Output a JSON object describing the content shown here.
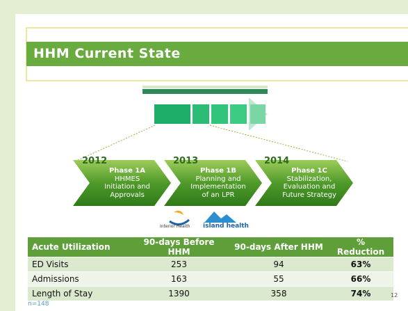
{
  "header": {
    "title": "HHM Current State"
  },
  "phases": [
    {
      "year": "2012",
      "name": "Phase 1A",
      "lines": [
        "HHMES",
        "Initiation and",
        "Approvals"
      ]
    },
    {
      "year": "2013",
      "name": "Phase 1B",
      "lines": [
        "Planning and",
        "Implementation",
        "of an LPR"
      ]
    },
    {
      "year": "2014",
      "name": "Phase 1C",
      "lines": [
        "Stabilization,",
        "Evaluation and",
        "Future Strategy"
      ]
    }
  ],
  "logos": [
    "Interior Health",
    "island health"
  ],
  "table": {
    "header": [
      "Acute Utilization",
      "90-days Before HHM",
      "90-days After HHM",
      "% Reduction"
    ],
    "rows": [
      [
        "ED Visits",
        "253",
        "94",
        "63%"
      ],
      [
        "Admissions",
        "163",
        "55",
        "66%"
      ],
      [
        "Length of Stay",
        "1390",
        "358",
        "74%"
      ]
    ]
  },
  "footnote": "n=148",
  "page_number": "12"
}
